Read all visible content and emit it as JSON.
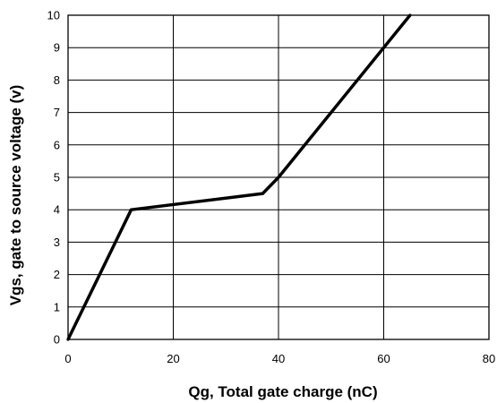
{
  "chart_data": {
    "type": "line",
    "title": "",
    "xlabel": "Qg, Total gate charge (nC)",
    "ylabel": "Vgs, gate to source voltage (v)",
    "xlim": [
      0,
      80
    ],
    "ylim": [
      0,
      10
    ],
    "xticks": [
      0,
      20,
      40,
      60,
      80
    ],
    "yticks": [
      0,
      1,
      2,
      3,
      4,
      5,
      6,
      7,
      8,
      9,
      10
    ],
    "xtick_labels": [
      "0",
      "20",
      "40",
      "60",
      "80"
    ],
    "ytick_labels": [
      "0",
      "1",
      "2",
      "3",
      "4",
      "5",
      "6",
      "7",
      "8",
      "9",
      "10"
    ],
    "grid": true,
    "legend": "none",
    "series": [
      {
        "color": "#000000",
        "x": [
          0,
          12,
          37,
          40,
          65
        ],
        "y": [
          0,
          4,
          4.5,
          5,
          10
        ]
      }
    ]
  }
}
